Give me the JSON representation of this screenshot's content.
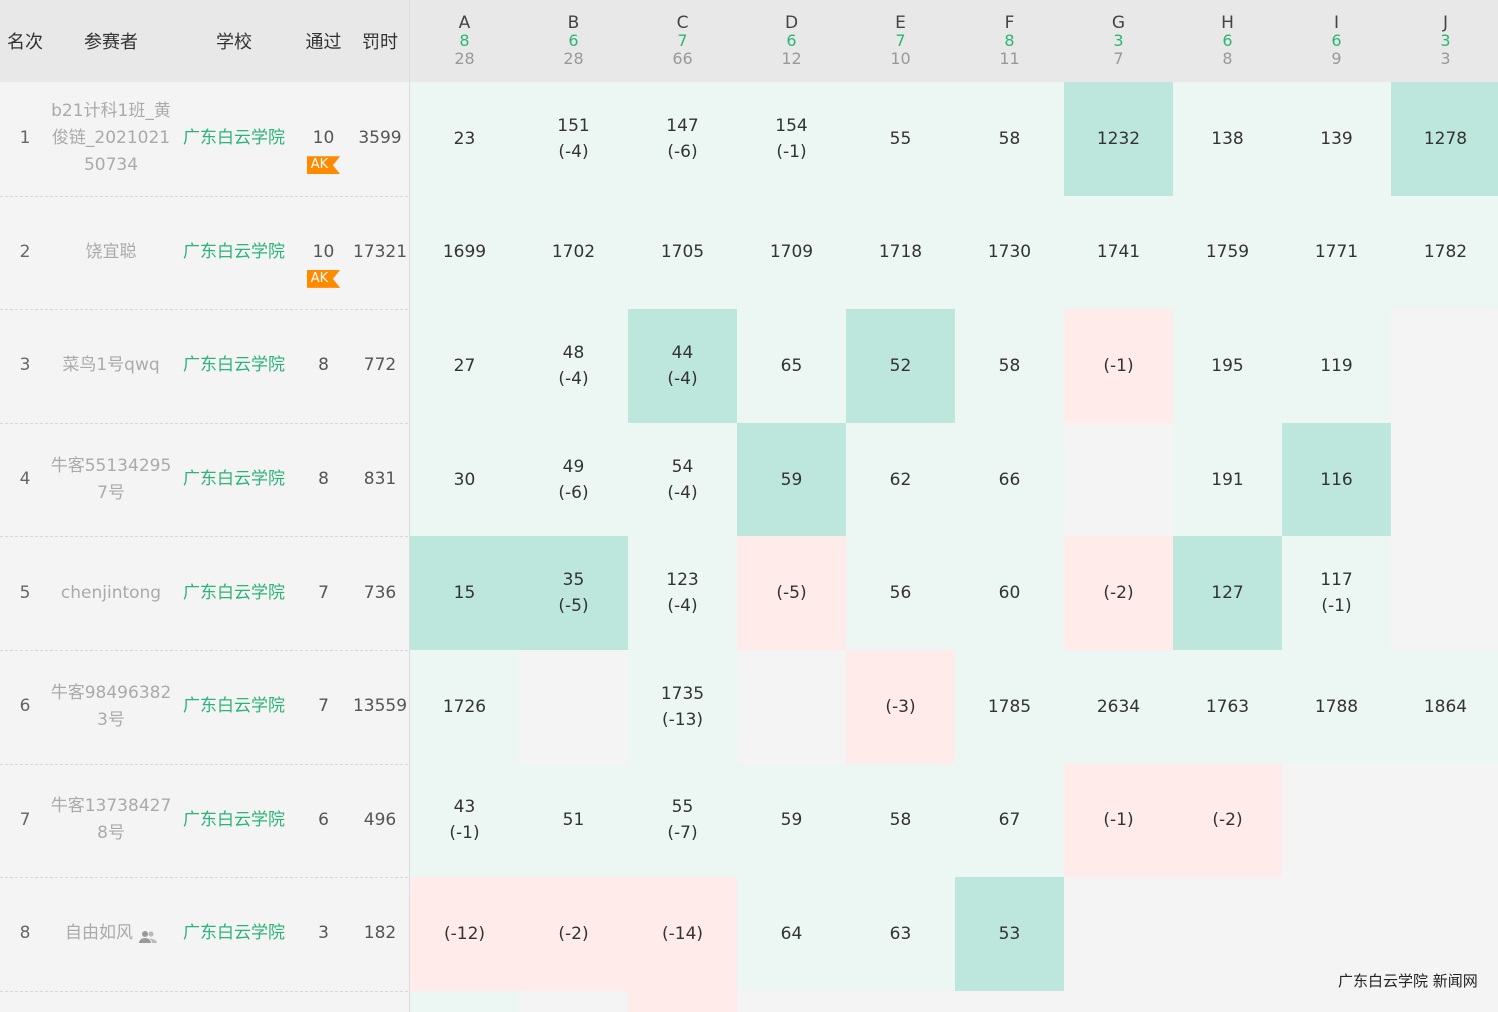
{
  "headers": {
    "rank": "名次",
    "participant": "参赛者",
    "school": "学校",
    "solved": "通过",
    "penalty": "罚时"
  },
  "problems": [
    {
      "letter": "A",
      "accepted": "8",
      "total": "28"
    },
    {
      "letter": "B",
      "accepted": "6",
      "total": "28"
    },
    {
      "letter": "C",
      "accepted": "7",
      "total": "66"
    },
    {
      "letter": "D",
      "accepted": "6",
      "total": "12"
    },
    {
      "letter": "E",
      "accepted": "7",
      "total": "10"
    },
    {
      "letter": "F",
      "accepted": "8",
      "total": "11"
    },
    {
      "letter": "G",
      "accepted": "3",
      "total": "7"
    },
    {
      "letter": "H",
      "accepted": "6",
      "total": "8"
    },
    {
      "letter": "I",
      "accepted": "6",
      "total": "9"
    },
    {
      "letter": "J",
      "accepted": "3",
      "total": "3"
    }
  ],
  "colors": {
    "accepted": "#ecf7f3",
    "first_blood": "#bde6dc",
    "wrong": "#feebea",
    "school": "#2bb37a",
    "ak_badge": "#ff8a00"
  },
  "rows": [
    {
      "rank": "1",
      "name": "b21计科1班_黄俊链_202102150734",
      "name_lines": [
        "b21计科1班_黄",
        "俊链_2021021",
        "50734"
      ],
      "school": "广东白云学院",
      "solved": "10",
      "penalty": "3599",
      "ak": "AK",
      "team_icon": false,
      "cells": [
        {
          "s": "ac",
          "t": "23",
          "w": ""
        },
        {
          "s": "ac",
          "t": "151",
          "w": "(-4)"
        },
        {
          "s": "ac",
          "t": "147",
          "w": "(-6)"
        },
        {
          "s": "ac",
          "t": "154",
          "w": "(-1)"
        },
        {
          "s": "ac",
          "t": "55",
          "w": ""
        },
        {
          "s": "ac",
          "t": "58",
          "w": ""
        },
        {
          "s": "fb",
          "t": "1232",
          "w": ""
        },
        {
          "s": "ac",
          "t": "138",
          "w": ""
        },
        {
          "s": "ac",
          "t": "139",
          "w": ""
        },
        {
          "s": "fb",
          "t": "1278",
          "w": ""
        }
      ]
    },
    {
      "rank": "2",
      "name": "饶宜聪",
      "name_lines": [
        "饶宜聪"
      ],
      "school": "广东白云学院",
      "solved": "10",
      "penalty": "17321",
      "ak": "AK",
      "team_icon": false,
      "cells": [
        {
          "s": "ac",
          "t": "1699",
          "w": ""
        },
        {
          "s": "ac",
          "t": "1702",
          "w": ""
        },
        {
          "s": "ac",
          "t": "1705",
          "w": ""
        },
        {
          "s": "ac",
          "t": "1709",
          "w": ""
        },
        {
          "s": "ac",
          "t": "1718",
          "w": ""
        },
        {
          "s": "ac",
          "t": "1730",
          "w": ""
        },
        {
          "s": "ac",
          "t": "1741",
          "w": ""
        },
        {
          "s": "ac",
          "t": "1759",
          "w": ""
        },
        {
          "s": "ac",
          "t": "1771",
          "w": ""
        },
        {
          "s": "ac",
          "t": "1782",
          "w": ""
        }
      ]
    },
    {
      "rank": "3",
      "name": "菜鸟1号qwq",
      "name_lines": [
        "菜鸟1号qwq"
      ],
      "school": "广东白云学院",
      "solved": "8",
      "penalty": "772",
      "ak": "",
      "team_icon": false,
      "cells": [
        {
          "s": "ac",
          "t": "27",
          "w": ""
        },
        {
          "s": "ac",
          "t": "48",
          "w": "(-4)"
        },
        {
          "s": "fb",
          "t": "44",
          "w": "(-4)"
        },
        {
          "s": "ac",
          "t": "65",
          "w": ""
        },
        {
          "s": "fb",
          "t": "52",
          "w": ""
        },
        {
          "s": "ac",
          "t": "58",
          "w": ""
        },
        {
          "s": "wa",
          "t": "",
          "w": "(-1)"
        },
        {
          "s": "ac",
          "t": "195",
          "w": ""
        },
        {
          "s": "ac",
          "t": "119",
          "w": ""
        },
        {
          "s": "na",
          "t": "",
          "w": ""
        }
      ]
    },
    {
      "rank": "4",
      "name": "牛客551342957号",
      "name_lines": [
        "牛客55134295",
        "7号"
      ],
      "school": "广东白云学院",
      "solved": "8",
      "penalty": "831",
      "ak": "",
      "team_icon": false,
      "cells": [
        {
          "s": "ac",
          "t": "30",
          "w": ""
        },
        {
          "s": "ac",
          "t": "49",
          "w": "(-6)"
        },
        {
          "s": "ac",
          "t": "54",
          "w": "(-4)"
        },
        {
          "s": "fb",
          "t": "59",
          "w": ""
        },
        {
          "s": "ac",
          "t": "62",
          "w": ""
        },
        {
          "s": "ac",
          "t": "66",
          "w": ""
        },
        {
          "s": "na",
          "t": "",
          "w": ""
        },
        {
          "s": "ac",
          "t": "191",
          "w": ""
        },
        {
          "s": "fb",
          "t": "116",
          "w": ""
        },
        {
          "s": "na",
          "t": "",
          "w": ""
        }
      ]
    },
    {
      "rank": "5",
      "name": "chenjintong",
      "name_lines": [
        "chenjintong"
      ],
      "school": "广东白云学院",
      "solved": "7",
      "penalty": "736",
      "ak": "",
      "team_icon": false,
      "cells": [
        {
          "s": "fb",
          "t": "15",
          "w": ""
        },
        {
          "s": "fb",
          "t": "35",
          "w": "(-5)"
        },
        {
          "s": "ac",
          "t": "123",
          "w": "(-4)"
        },
        {
          "s": "wa",
          "t": "",
          "w": "(-5)"
        },
        {
          "s": "ac",
          "t": "56",
          "w": ""
        },
        {
          "s": "ac",
          "t": "60",
          "w": ""
        },
        {
          "s": "wa",
          "t": "",
          "w": "(-2)"
        },
        {
          "s": "fb",
          "t": "127",
          "w": ""
        },
        {
          "s": "ac",
          "t": "117",
          "w": "(-1)"
        },
        {
          "s": "na",
          "t": "",
          "w": ""
        }
      ]
    },
    {
      "rank": "6",
      "name": "牛客984963823号",
      "name_lines": [
        "牛客98496382",
        "3号"
      ],
      "school": "广东白云学院",
      "solved": "7",
      "penalty": "13559",
      "ak": "",
      "team_icon": false,
      "cells": [
        {
          "s": "ac",
          "t": "1726",
          "w": ""
        },
        {
          "s": "na",
          "t": "",
          "w": ""
        },
        {
          "s": "ac",
          "t": "1735",
          "w": "(-13)"
        },
        {
          "s": "na",
          "t": "",
          "w": ""
        },
        {
          "s": "wa",
          "t": "",
          "w": "(-3)"
        },
        {
          "s": "ac",
          "t": "1785",
          "w": ""
        },
        {
          "s": "ac",
          "t": "2634",
          "w": ""
        },
        {
          "s": "ac",
          "t": "1763",
          "w": ""
        },
        {
          "s": "ac",
          "t": "1788",
          "w": ""
        },
        {
          "s": "ac",
          "t": "1864",
          "w": ""
        }
      ]
    },
    {
      "rank": "7",
      "name": "牛客137384278号",
      "name_lines": [
        "牛客13738427",
        "8号"
      ],
      "school": "广东白云学院",
      "solved": "6",
      "penalty": "496",
      "ak": "",
      "team_icon": false,
      "cells": [
        {
          "s": "ac",
          "t": "43",
          "w": "(-1)"
        },
        {
          "s": "ac",
          "t": "51",
          "w": ""
        },
        {
          "s": "ac",
          "t": "55",
          "w": "(-7)"
        },
        {
          "s": "ac",
          "t": "59",
          "w": ""
        },
        {
          "s": "ac",
          "t": "58",
          "w": ""
        },
        {
          "s": "ac",
          "t": "67",
          "w": ""
        },
        {
          "s": "wa",
          "t": "",
          "w": "(-1)"
        },
        {
          "s": "wa",
          "t": "",
          "w": "(-2)"
        },
        {
          "s": "na",
          "t": "",
          "w": ""
        },
        {
          "s": "na",
          "t": "",
          "w": ""
        }
      ]
    },
    {
      "rank": "8",
      "name": "自由如风",
      "name_lines": [
        "自由如风"
      ],
      "school": "广东白云学院",
      "solved": "3",
      "penalty": "182",
      "ak": "",
      "team_icon": true,
      "cells": [
        {
          "s": "wa",
          "t": "",
          "w": "(-12)"
        },
        {
          "s": "wa",
          "t": "",
          "w": "(-2)"
        },
        {
          "s": "wa",
          "t": "",
          "w": "(-14)"
        },
        {
          "s": "ac",
          "t": "64",
          "w": ""
        },
        {
          "s": "ac",
          "t": "63",
          "w": ""
        },
        {
          "s": "fb",
          "t": "53",
          "w": ""
        },
        {
          "s": "na",
          "t": "",
          "w": ""
        },
        {
          "s": "na",
          "t": "",
          "w": ""
        },
        {
          "s": "na",
          "t": "",
          "w": ""
        },
        {
          "s": "na",
          "t": "",
          "w": ""
        }
      ]
    }
  ],
  "partial_row_cells": [
    "ac",
    "na",
    "wa",
    "na",
    "na",
    "na",
    "na",
    "na",
    "na",
    "na"
  ],
  "watermark": "广东白云学院 新闻网"
}
